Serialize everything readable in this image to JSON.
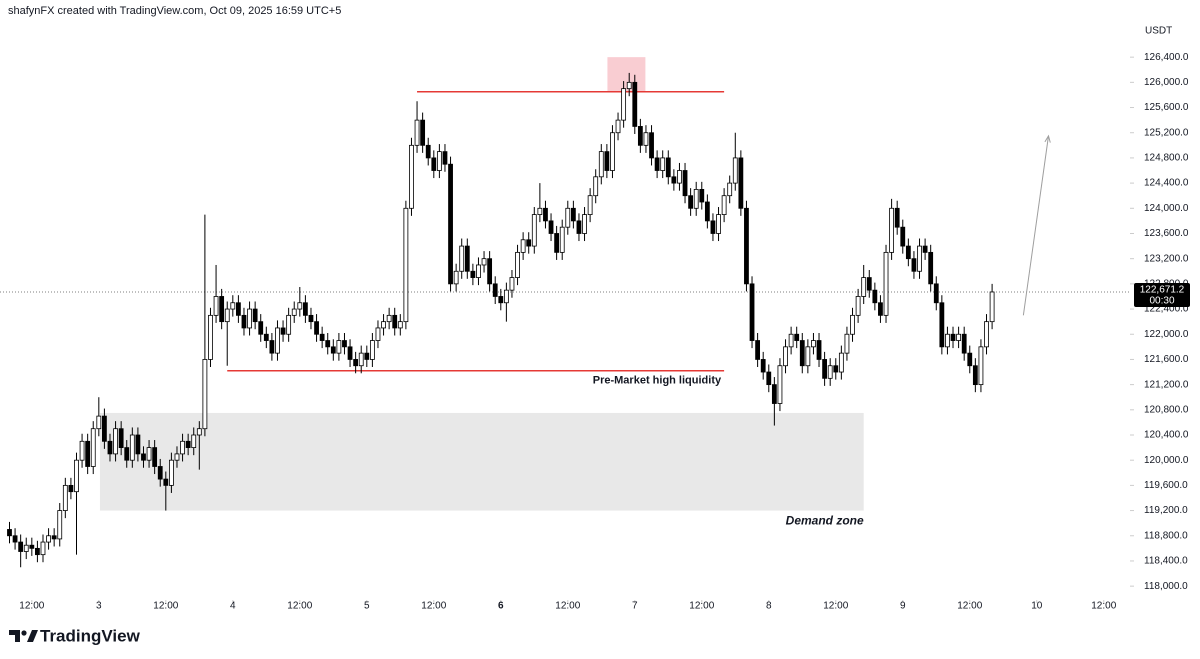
{
  "chart_data": {
    "type": "candlestick",
    "title": "shafynFX created with TradingView.com, Oct 09, 2025 16:59 UTC+5",
    "y_axis_label": "USDT",
    "brand": "TradingView",
    "up_color": "#ffffff",
    "down_color": "#000000",
    "edge_color": "#000000",
    "xlim": [
      6.3,
      208.7
    ],
    "ylim": [
      117780,
      126990
    ],
    "xticks": [
      {
        "value": 12,
        "label": "12:00"
      },
      {
        "value": 24,
        "label": "3"
      },
      {
        "value": 36,
        "label": "12:00"
      },
      {
        "value": 48,
        "label": "4"
      },
      {
        "value": 60,
        "label": "12:00"
      },
      {
        "value": 72,
        "label": "5"
      },
      {
        "value": 84,
        "label": "12:00"
      },
      {
        "value": 96,
        "label": "6"
      },
      {
        "value": 108,
        "label": "12:00"
      },
      {
        "value": 120,
        "label": "7"
      },
      {
        "value": 132,
        "label": "12:00"
      },
      {
        "value": 144,
        "label": "8"
      },
      {
        "value": 156,
        "label": "12:00"
      },
      {
        "value": 168,
        "label": "9"
      },
      {
        "value": 180,
        "label": "12:00"
      },
      {
        "value": 192,
        "label": "10"
      },
      {
        "value": 204,
        "label": "12:00"
      }
    ],
    "yticks": [
      {
        "value": 118000,
        "label": "118,000.0"
      },
      {
        "value": 118400,
        "label": "118,400.0"
      },
      {
        "value": 118800,
        "label": "118,800.0"
      },
      {
        "value": 119200,
        "label": "119,200.0"
      },
      {
        "value": 119600,
        "label": "119,600.0"
      },
      {
        "value": 120000,
        "label": "120,000.0"
      },
      {
        "value": 120400,
        "label": "120,400.0"
      },
      {
        "value": 120800,
        "label": "120,800.0"
      },
      {
        "value": 121200,
        "label": "121,200.0"
      },
      {
        "value": 121600,
        "label": "121,600.0"
      },
      {
        "value": 122000,
        "label": "122,000.0"
      },
      {
        "value": 122400,
        "label": "122,400.0"
      },
      {
        "value": 122800,
        "label": "122,800.0"
      },
      {
        "value": 123200,
        "label": "123,200.0"
      },
      {
        "value": 123600,
        "label": "123,600.0"
      },
      {
        "value": 124000,
        "label": "124,000.0"
      },
      {
        "value": 124400,
        "label": "124,400.0"
      },
      {
        "value": 124800,
        "label": "124,800.0"
      },
      {
        "value": 125200,
        "label": "125,200.0"
      },
      {
        "value": 125600,
        "label": "125,600.0"
      },
      {
        "value": 126000,
        "label": "126,000.0"
      },
      {
        "value": 126400,
        "label": "126,400.0"
      }
    ],
    "x": [
      8,
      9,
      10,
      11,
      12,
      13,
      14,
      15,
      16,
      17,
      18,
      19,
      20,
      21,
      22,
      23,
      24,
      25,
      26,
      27,
      28,
      29,
      30,
      31,
      32,
      33,
      34,
      35,
      36,
      37,
      38,
      39,
      40,
      41,
      42,
      43,
      44,
      45,
      46,
      47,
      48,
      49,
      50,
      51,
      52,
      53,
      54,
      55,
      56,
      57,
      58,
      59,
      60,
      61,
      62,
      63,
      64,
      65,
      66,
      67,
      68,
      69,
      70,
      71,
      72,
      73,
      74,
      75,
      76,
      77,
      78,
      79,
      80,
      81,
      82,
      83,
      84,
      85,
      86,
      87,
      88,
      89,
      90,
      91,
      92,
      93,
      94,
      95,
      96,
      97,
      98,
      99,
      100,
      101,
      102,
      103,
      104,
      105,
      106,
      107,
      108,
      109,
      110,
      111,
      112,
      113,
      114,
      115,
      116,
      117,
      118,
      119,
      120,
      121,
      122,
      123,
      124,
      125,
      126,
      127,
      128,
      129,
      130,
      131,
      132,
      133,
      134,
      135,
      136,
      137,
      138,
      139,
      140,
      141,
      142,
      143,
      144,
      145,
      146,
      147,
      148,
      149,
      150,
      151,
      152,
      153,
      154,
      155,
      156,
      157,
      158,
      159,
      160,
      161,
      162,
      163,
      164,
      165,
      166,
      167,
      168,
      169,
      170,
      171,
      172,
      173,
      174,
      175,
      176,
      177,
      178,
      179,
      180,
      181,
      182,
      183,
      184
    ],
    "open": [
      118900,
      118800,
      118700,
      118550,
      118650,
      118600,
      118500,
      118700,
      118800,
      118750,
      119200,
      119600,
      119500,
      120000,
      120300,
      119900,
      120500,
      120700,
      120300,
      120100,
      120500,
      120200,
      120000,
      120400,
      120100,
      120000,
      120200,
      119900,
      119700,
      119600,
      120000,
      120100,
      120300,
      120200,
      120400,
      120500,
      121600,
      122300,
      122600,
      122200,
      122400,
      122500,
      122300,
      122100,
      122400,
      122200,
      122000,
      121900,
      121700,
      122100,
      122000,
      122300,
      122400,
      122500,
      122300,
      122200,
      122000,
      121900,
      121800,
      121700,
      121900,
      121800,
      121600,
      121500,
      121700,
      121600,
      121900,
      122100,
      122200,
      122300,
      122100,
      122200,
      124000,
      125000,
      125400,
      125000,
      124800,
      124600,
      124900,
      124700,
      122800,
      123000,
      123400,
      123000,
      122900,
      123100,
      123200,
      122800,
      122600,
      122500,
      122700,
      122900,
      123300,
      123500,
      123400,
      123900,
      124000,
      123800,
      123600,
      123300,
      123700,
      124000,
      123800,
      123600,
      123900,
      124200,
      124500,
      124900,
      124600,
      125200,
      125400,
      125900,
      126000,
      125300,
      125000,
      125200,
      124800,
      124600,
      124800,
      124500,
      124400,
      124600,
      124200,
      124000,
      124300,
      124100,
      123800,
      123600,
      123900,
      124200,
      124400,
      124800,
      124000,
      122800,
      121900,
      121600,
      121400,
      121200,
      120900,
      121500,
      121800,
      122000,
      121900,
      121500,
      121800,
      121900,
      121600,
      121300,
      121500,
      121400,
      121700,
      122000,
      122300,
      122600,
      122900,
      122700,
      122500,
      122300,
      123300,
      124000,
      123700,
      123400,
      123200,
      123000,
      123400,
      123300,
      122800,
      122500,
      121800,
      122000,
      121900,
      122000,
      121700,
      121500,
      121200,
      121800,
      122200
    ],
    "high": [
      119020,
      118920,
      118820,
      118770,
      118770,
      118720,
      118820,
      118920,
      118920,
      119320,
      119720,
      119720,
      120120,
      120420,
      120420,
      120620,
      121000,
      120820,
      120420,
      120620,
      120620,
      120320,
      120520,
      120520,
      120220,
      120320,
      120320,
      120020,
      119820,
      120120,
      120220,
      120420,
      120420,
      120520,
      120620,
      123900,
      122420,
      123100,
      122720,
      122520,
      122620,
      122620,
      122420,
      122520,
      122520,
      122320,
      122120,
      122020,
      122220,
      122220,
      122420,
      122520,
      122750,
      122620,
      122420,
      122320,
      122120,
      122020,
      121920,
      122020,
      122020,
      121920,
      121720,
      121820,
      121820,
      122020,
      122220,
      122320,
      122420,
      122420,
      122320,
      124120,
      125120,
      125700,
      125520,
      125120,
      124920,
      125020,
      125020,
      124820,
      123120,
      123520,
      123520,
      123120,
      123220,
      123320,
      123320,
      122920,
      122720,
      122820,
      123020,
      123420,
      123620,
      123620,
      124020,
      124400,
      124120,
      123920,
      123720,
      123820,
      124120,
      124120,
      123920,
      124020,
      124320,
      124620,
      125020,
      125020,
      125320,
      125520,
      126020,
      126150,
      126120,
      125420,
      125320,
      125320,
      124920,
      124920,
      124920,
      124620,
      124720,
      124720,
      124320,
      124420,
      124420,
      124220,
      123920,
      124020,
      124320,
      124520,
      125200,
      124920,
      124120,
      122920,
      122020,
      121720,
      121520,
      121320,
      121620,
      121920,
      122120,
      122120,
      122020,
      121920,
      122020,
      122020,
      121720,
      121620,
      121620,
      121820,
      122120,
      122420,
      122720,
      123100,
      123020,
      122820,
      122620,
      123420,
      124150,
      124120,
      123820,
      123520,
      123320,
      123520,
      123520,
      123420,
      122920,
      122620,
      122120,
      122120,
      122120,
      122120,
      121820,
      121620,
      121920,
      122320,
      122800
    ],
    "low": [
      118680,
      118580,
      118300,
      118430,
      118480,
      118380,
      118380,
      118580,
      118630,
      118630,
      119080,
      119380,
      118500,
      119880,
      119780,
      119780,
      120380,
      120180,
      119980,
      119980,
      120080,
      119880,
      119880,
      119980,
      119880,
      119880,
      119780,
      119580,
      119200,
      119480,
      119880,
      119980,
      120080,
      120080,
      119850,
      120380,
      121480,
      122180,
      122080,
      121500,
      122280,
      122180,
      121980,
      121980,
      122080,
      121880,
      121780,
      121580,
      121580,
      121880,
      121880,
      122180,
      122280,
      122180,
      122080,
      121880,
      121780,
      121680,
      121580,
      121580,
      121680,
      121480,
      121380,
      121380,
      121480,
      121480,
      121780,
      121980,
      122080,
      121980,
      121980,
      122080,
      123880,
      124880,
      124880,
      124680,
      124480,
      124480,
      124580,
      122680,
      122680,
      122880,
      122880,
      122780,
      122780,
      122980,
      122680,
      122480,
      122380,
      122200,
      122580,
      122780,
      123180,
      123280,
      123280,
      123780,
      123680,
      123480,
      123180,
      123180,
      123580,
      123680,
      123480,
      123480,
      123780,
      124080,
      124380,
      124480,
      124480,
      125080,
      125280,
      125780,
      125180,
      124880,
      124880,
      124680,
      124480,
      124480,
      124380,
      124280,
      124280,
      124080,
      123880,
      123880,
      123980,
      123680,
      123480,
      123480,
      123780,
      124080,
      124280,
      123880,
      122680,
      121780,
      121480,
      121280,
      121080,
      120550,
      120780,
      121380,
      121680,
      121780,
      121380,
      121380,
      121680,
      121480,
      121180,
      121180,
      121280,
      121280,
      121580,
      121880,
      122180,
      122480,
      122580,
      122380,
      122180,
      122180,
      123180,
      123580,
      123280,
      123080,
      122880,
      122880,
      123180,
      122680,
      122380,
      121680,
      121680,
      121780,
      121780,
      121580,
      121380,
      121080,
      121080,
      121680,
      122080
    ],
    "close": [
      118800,
      118700,
      118550,
      118650,
      118600,
      118500,
      118700,
      118800,
      118750,
      119200,
      119600,
      119500,
      120000,
      120300,
      119900,
      120500,
      120700,
      120300,
      120100,
      120500,
      120200,
      120000,
      120400,
      120100,
      120000,
      120200,
      119900,
      119700,
      119600,
      120000,
      120100,
      120300,
      120200,
      120400,
      120500,
      121600,
      122300,
      122600,
      122200,
      122400,
      122500,
      122300,
      122100,
      122400,
      122200,
      122000,
      121900,
      121700,
      122100,
      122000,
      122300,
      122400,
      122500,
      122300,
      122200,
      122000,
      121900,
      121800,
      121700,
      121900,
      121800,
      121600,
      121500,
      121700,
      121600,
      121900,
      122100,
      122200,
      122300,
      122100,
      122200,
      124000,
      125000,
      125400,
      125000,
      124800,
      124600,
      124900,
      124700,
      122800,
      123000,
      123400,
      123000,
      122900,
      123100,
      123200,
      122800,
      122600,
      122500,
      122700,
      122900,
      123300,
      123500,
      123400,
      123900,
      124000,
      123800,
      123600,
      123300,
      123700,
      124000,
      123800,
      123600,
      123900,
      124200,
      124500,
      124900,
      124600,
      125200,
      125400,
      125900,
      126000,
      125300,
      125000,
      125200,
      124800,
      124600,
      124800,
      124500,
      124400,
      124600,
      124200,
      124000,
      124300,
      124100,
      123800,
      123600,
      123900,
      124200,
      124400,
      124800,
      124000,
      122800,
      121900,
      121600,
      121400,
      121200,
      120900,
      121500,
      121800,
      122000,
      121900,
      121500,
      121800,
      121900,
      121600,
      121300,
      121500,
      121400,
      121700,
      122000,
      122300,
      122600,
      122900,
      122700,
      122500,
      122300,
      123300,
      124000,
      123700,
      123400,
      123200,
      123000,
      123400,
      123300,
      122800,
      122500,
      121800,
      122000,
      121900,
      122000,
      121700,
      121500,
      121200,
      121800,
      122200,
      122671.2
    ],
    "zones": [
      {
        "name": "Demand zone",
        "x": [
          24.2,
          161
        ],
        "y": [
          119200,
          120750
        ],
        "color": "#e8e8e8"
      },
      {
        "x": [
          115.1,
          121.9
        ],
        "y": [
          125850,
          126400
        ],
        "color": "#f9cdd2"
      }
    ],
    "levels": [
      {
        "value": 125850,
        "x": [
          81,
          136
        ],
        "color": "#e53935"
      },
      {
        "value": 121420,
        "x": [
          47,
          136
        ],
        "color": "#e53935",
        "label": "Pre-Market high liquidity"
      }
    ],
    "arrow": {
      "x": [
        189.6,
        194.1
      ],
      "y": [
        122300,
        125150
      ],
      "color": "#9e9e9e"
    },
    "last_price": {
      "value": 122671.2,
      "label": "122,671.2",
      "countdown": "00:30",
      "color": "#000000"
    }
  }
}
